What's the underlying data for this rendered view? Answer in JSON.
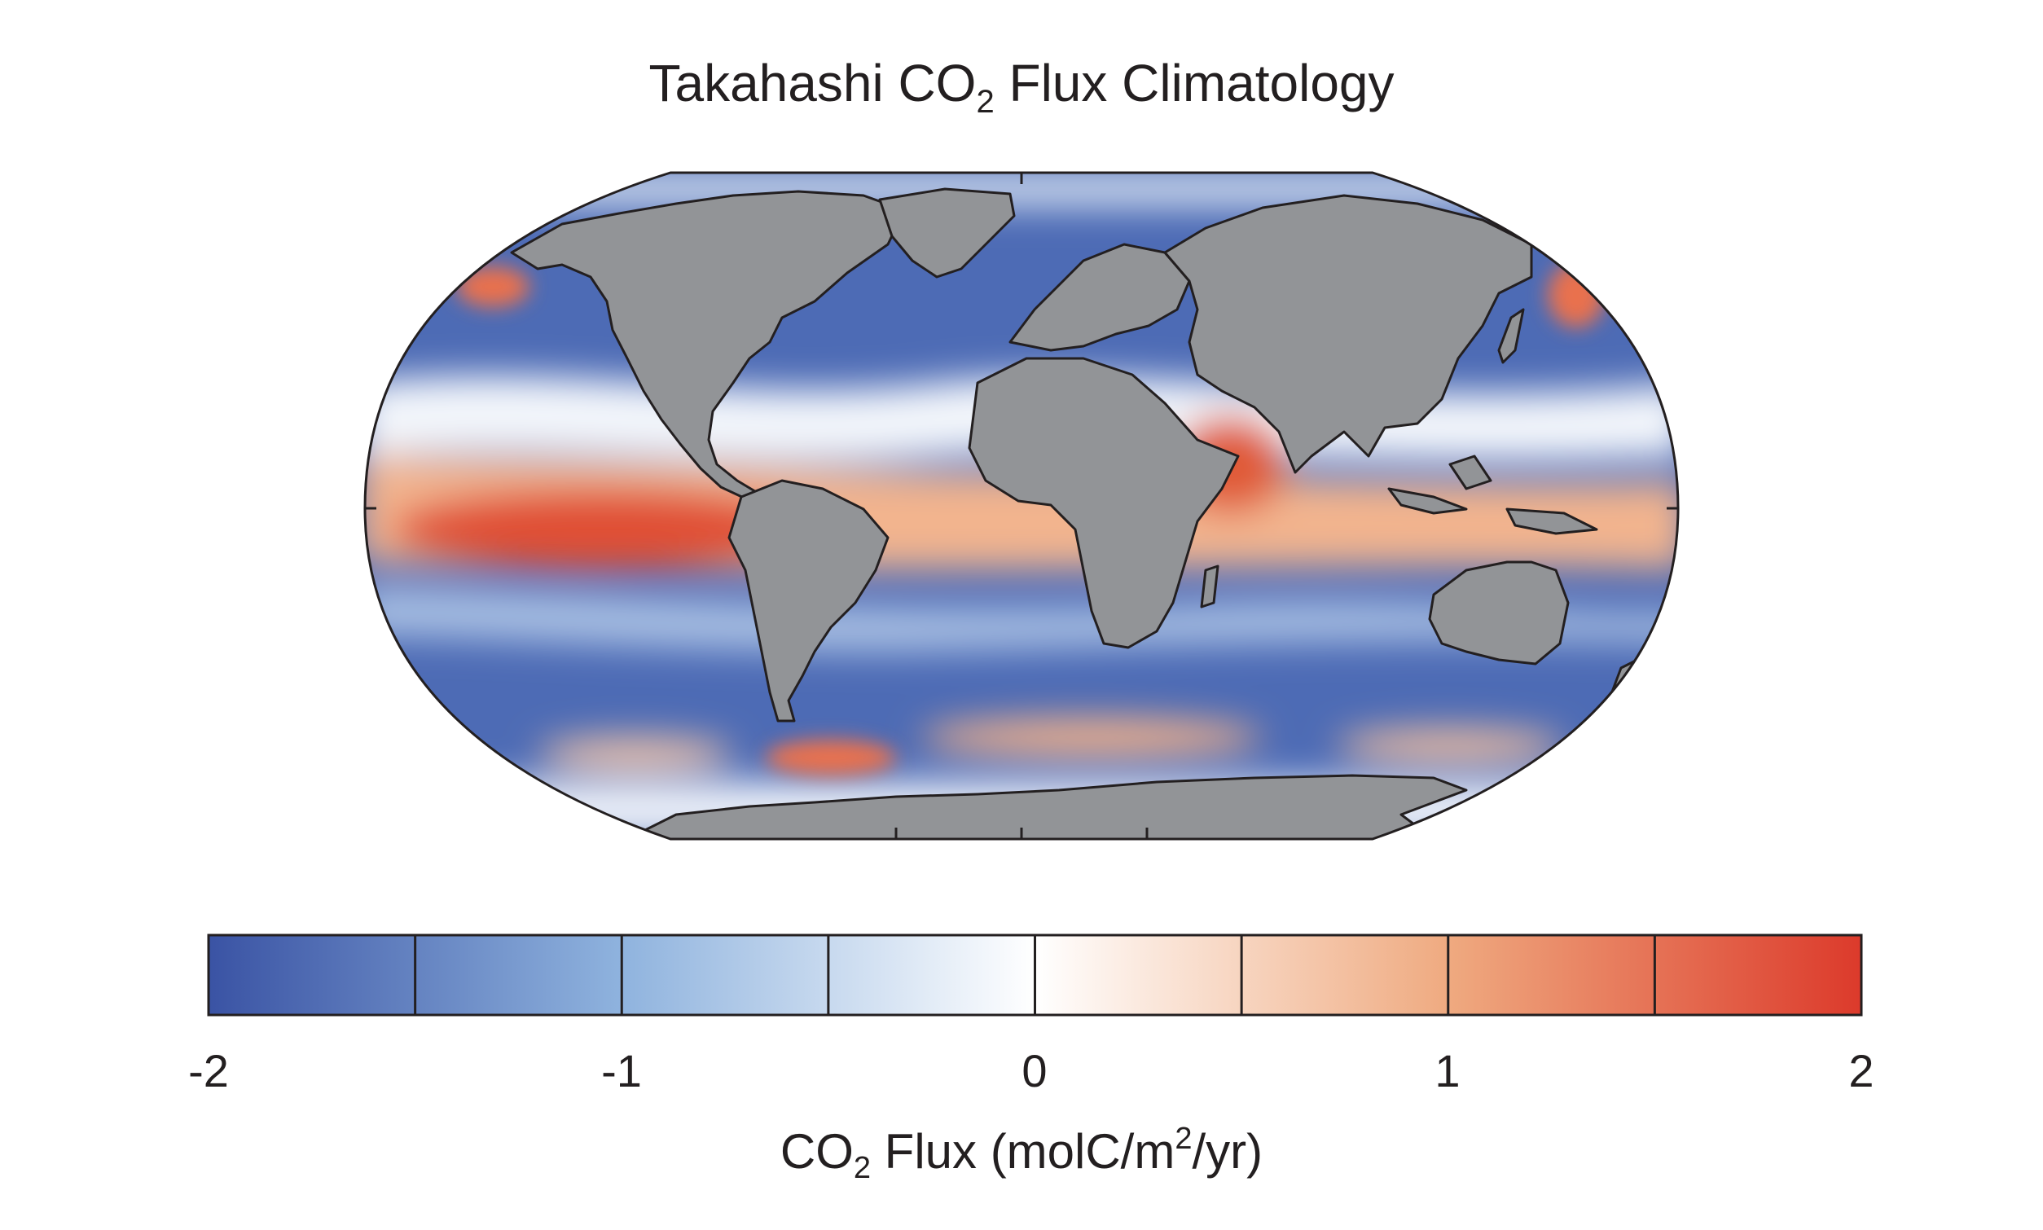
{
  "title": {
    "prefix": "Takahashi CO",
    "subscript": "2",
    "suffix": " Flux Climatology"
  },
  "colorbar": {
    "min": -2,
    "max": 2,
    "ticks": [
      "-2",
      "-1",
      "0",
      "1",
      "2"
    ],
    "label": {
      "prefix": "CO",
      "subscript": "2",
      "middle": " Flux (molC/m",
      "superscript": "2",
      "suffix": "/yr)"
    },
    "colors": {
      "negative": "#3a53a4",
      "mid_negative": "#8fb3de",
      "zero": "#ffffff",
      "mid_positive": "#efaa80",
      "positive": "#dc3a2b"
    }
  },
  "map": {
    "projection": "Robinson",
    "land_color": "#929497",
    "outline_color": "#231f20"
  }
}
